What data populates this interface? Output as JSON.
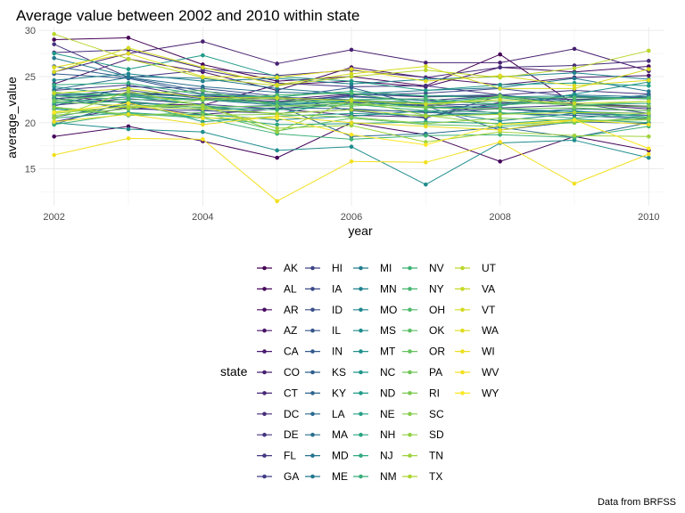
{
  "chart_data": {
    "type": "line",
    "title": "Average value between 2002 and 2010 within state",
    "xlabel": "year",
    "ylabel": "average_value",
    "caption": "Data from BRFSS",
    "legend_title": "state",
    "legend_position": "bottom",
    "grid": true,
    "xlim": [
      2001.8,
      2010.2
    ],
    "ylim": [
      11.0,
      30.4
    ],
    "x_ticks": [
      2002,
      2004,
      2006,
      2008,
      2010
    ],
    "y_ticks": [
      15,
      20,
      25,
      30
    ],
    "x": [
      2002,
      2003,
      2004,
      2005,
      2006,
      2007,
      2008,
      2009,
      2010
    ],
    "series": [
      {
        "name": "AK",
        "color": "#440154",
        "values": [
          29.0,
          29.2,
          26.3,
          24.5,
          25.0,
          24.0,
          27.4,
          22.0,
          21.8
        ]
      },
      {
        "name": "AL",
        "color": "#45065b",
        "values": [
          18.5,
          19.6,
          18.0,
          16.2,
          20.0,
          18.7,
          15.8,
          18.5,
          17.0
        ]
      },
      {
        "name": "AR",
        "color": "#470c61",
        "values": [
          23.0,
          22.1,
          21.9,
          24.1,
          24.5,
          23.9,
          26.0,
          25.5,
          26.1
        ]
      },
      {
        "name": "AZ",
        "color": "#481467",
        "values": [
          24.2,
          26.9,
          25.5,
          23.5,
          26.0,
          24.9,
          24.1,
          24.9,
          25.1
        ]
      },
      {
        "name": "CA",
        "color": "#48196d",
        "values": [
          22.6,
          23.2,
          22.9,
          22.5,
          23.1,
          22.8,
          22.9,
          22.5,
          22.7
        ]
      },
      {
        "name": "CO",
        "color": "#482071",
        "values": [
          25.5,
          27.5,
          28.8,
          26.4,
          27.9,
          26.5,
          26.5,
          28.0,
          25.6
        ]
      },
      {
        "name": "CT",
        "color": "#472675",
        "values": [
          20.1,
          21.7,
          20.9,
          21.5,
          20.8,
          20.6,
          22.2,
          22.0,
          21.5
        ]
      },
      {
        "name": "DC",
        "color": "#462d7b",
        "values": [
          27.6,
          27.9,
          25.9,
          25.1,
          25.7,
          24.9,
          26.0,
          26.2,
          26.7
        ]
      },
      {
        "name": "DE",
        "color": "#45337f",
        "values": [
          28.5,
          24.9,
          25.7,
          24.3,
          23.9,
          24.0,
          23.0,
          23.5,
          23.1
        ]
      },
      {
        "name": "FL",
        "color": "#433882",
        "values": [
          23.5,
          24.1,
          22.7,
          22.3,
          22.9,
          22.4,
          22.9,
          22.5,
          22.8
        ]
      },
      {
        "name": "GA",
        "color": "#413e85",
        "values": [
          21.9,
          22.6,
          22.0,
          21.5,
          22.2,
          21.9,
          21.6,
          21.9,
          21.7
        ]
      },
      {
        "name": "HI",
        "color": "#3e4487",
        "values": [
          22.9,
          23.5,
          22.6,
          22.2,
          23.0,
          23.2,
          23.7,
          22.8,
          22.6
        ]
      },
      {
        "name": "IA",
        "color": "#3b4988",
        "values": [
          22.7,
          21.5,
          21.3,
          21.0,
          21.4,
          21.2,
          21.5,
          21.0,
          20.8
        ]
      },
      {
        "name": "ID",
        "color": "#384f8a",
        "values": [
          21.8,
          23.9,
          23.7,
          22.9,
          21.3,
          20.5,
          22.9,
          22.1,
          21.0
        ]
      },
      {
        "name": "IL",
        "color": "#35548b",
        "values": [
          22.6,
          23.1,
          22.9,
          22.7,
          22.5,
          22.0,
          21.9,
          22.8,
          22.6
        ]
      },
      {
        "name": "IN",
        "color": "#325a8c",
        "values": [
          25.3,
          24.8,
          23.1,
          22.8,
          22.4,
          21.8,
          21.0,
          20.8,
          20.4
        ]
      },
      {
        "name": "KS",
        "color": "#2f5f8d",
        "values": [
          26.1,
          24.9,
          23.4,
          22.7,
          23.8,
          21.8,
          19.2,
          20.1,
          19.9
        ]
      },
      {
        "name": "KY",
        "color": "#2c648e",
        "values": [
          20.6,
          22.0,
          21.4,
          21.6,
          21.5,
          21.1,
          20.9,
          21.5,
          21.3
        ]
      },
      {
        "name": "LA",
        "color": "#2a698e",
        "values": [
          19.8,
          22.3,
          21.6,
          21.9,
          18.5,
          18.8,
          19.5,
          18.4,
          20.0
        ]
      },
      {
        "name": "MA",
        "color": "#276e8e",
        "values": [
          23.6,
          24.9,
          23.9,
          23.3,
          23.1,
          22.9,
          23.0,
          22.3,
          23.0
        ]
      },
      {
        "name": "MD",
        "color": "#25738e",
        "values": [
          23.1,
          23.0,
          22.5,
          22.1,
          22.8,
          22.4,
          22.0,
          23.0,
          22.8
        ]
      },
      {
        "name": "ME",
        "color": "#23788e",
        "values": [
          27.0,
          25.0,
          24.8,
          23.7,
          23.1,
          23.5,
          23.8,
          24.8,
          23.4
        ]
      },
      {
        "name": "MI",
        "color": "#217d8e",
        "values": [
          22.2,
          22.8,
          22.5,
          21.9,
          22.3,
          21.7,
          21.5,
          21.2,
          21.0
        ]
      },
      {
        "name": "MN",
        "color": "#1f838e",
        "values": [
          24.6,
          25.3,
          24.5,
          24.8,
          24.2,
          24.7,
          25.0,
          25.4,
          24.7
        ]
      },
      {
        "name": "MO",
        "color": "#1e878d",
        "values": [
          21.5,
          20.8,
          20.9,
          20.3,
          20.7,
          21.3,
          20.2,
          21.0,
          20.5
        ]
      },
      {
        "name": "MS",
        "color": "#1e8c8c",
        "values": [
          20.0,
          19.3,
          19.0,
          17.0,
          17.4,
          13.3,
          17.8,
          18.1,
          16.2
        ]
      },
      {
        "name": "MT",
        "color": "#1e918b",
        "values": [
          23.9,
          22.9,
          21.9,
          20.9,
          22.5,
          21.6,
          21.8,
          23.1,
          24.4
        ]
      },
      {
        "name": "NC",
        "color": "#1f968a",
        "values": [
          22.9,
          23.1,
          22.8,
          22.0,
          22.4,
          22.2,
          22.8,
          22.9,
          22.6
        ]
      },
      {
        "name": "ND",
        "color": "#219b88",
        "values": [
          27.5,
          25.8,
          27.3,
          25.0,
          24.5,
          23.5,
          24.1,
          24.3,
          24.0
        ]
      },
      {
        "name": "NE",
        "color": "#25a085",
        "values": [
          22.1,
          22.3,
          20.1,
          20.7,
          21.0,
          20.8,
          21.0,
          21.3,
          20.6
        ]
      },
      {
        "name": "NH",
        "color": "#2aa482",
        "values": [
          20.5,
          21.1,
          20.6,
          19.8,
          19.9,
          20.1,
          19.9,
          20.4,
          20.0
        ]
      },
      {
        "name": "NJ",
        "color": "#30a97f",
        "values": [
          24.1,
          24.3,
          23.0,
          22.8,
          23.4,
          22.9,
          22.7,
          21.9,
          22.1
        ]
      },
      {
        "name": "NM",
        "color": "#37ad7a",
        "values": [
          22.5,
          22.2,
          21.6,
          21.4,
          22.0,
          21.3,
          21.1,
          20.5,
          21.0
        ]
      },
      {
        "name": "NV",
        "color": "#3eb276",
        "values": [
          19.8,
          21.0,
          20.5,
          18.8,
          18.2,
          18.6,
          18.7,
          18.4,
          19.6
        ]
      },
      {
        "name": "NY",
        "color": "#47b671",
        "values": [
          22.9,
          22.5,
          22.5,
          22.2,
          22.5,
          22.6,
          21.9,
          22.4,
          22.7
        ]
      },
      {
        "name": "OH",
        "color": "#50ba6b",
        "values": [
          23.3,
          22.9,
          22.4,
          23.0,
          23.2,
          22.0,
          22.7,
          22.7,
          22.6
        ]
      },
      {
        "name": "OK",
        "color": "#5abe65",
        "values": [
          21.6,
          20.8,
          21.1,
          19.1,
          20.5,
          19.8,
          19.6,
          20.0,
          20.6
        ]
      },
      {
        "name": "OR",
        "color": "#64c25f",
        "values": [
          22.4,
          23.1,
          23.5,
          21.8,
          21.8,
          22.2,
          22.3,
          21.9,
          22.3
        ]
      },
      {
        "name": "PA",
        "color": "#6fc658",
        "values": [
          22.3,
          21.8,
          21.7,
          21.8,
          22.1,
          21.6,
          21.5,
          21.6,
          21.3
        ]
      },
      {
        "name": "RI",
        "color": "#7ac951",
        "values": [
          20.8,
          21.5,
          22.5,
          22.6,
          22.0,
          21.7,
          22.9,
          21.8,
          21.8
        ]
      },
      {
        "name": "SC",
        "color": "#86cc4a",
        "values": [
          21.7,
          20.9,
          20.8,
          20.9,
          20.6,
          19.9,
          20.5,
          20.2,
          20.3
        ]
      },
      {
        "name": "SD",
        "color": "#92d042",
        "values": [
          21.0,
          21.8,
          21.9,
          19.0,
          22.5,
          20.8,
          19.8,
          20.1,
          20.4
        ]
      },
      {
        "name": "TN",
        "color": "#9fd33b",
        "values": [
          20.5,
          23.4,
          21.8,
          19.4,
          19.7,
          17.9,
          19.0,
          18.6,
          18.5
        ]
      },
      {
        "name": "TX",
        "color": "#acd533",
        "values": [
          21.2,
          21.7,
          21.5,
          21.0,
          21.4,
          20.7,
          20.9,
          21.1,
          21.0
        ]
      },
      {
        "name": "UT",
        "color": "#b9d72c",
        "values": [
          29.6,
          26.9,
          24.9,
          24.0,
          25.0,
          25.7,
          24.9,
          25.9,
          27.8
        ]
      },
      {
        "name": "VA",
        "color": "#c6d925",
        "values": [
          23.2,
          23.7,
          22.7,
          22.7,
          22.4,
          22.0,
          22.5,
          22.1,
          22.3
        ]
      },
      {
        "name": "VT",
        "color": "#d3db21",
        "values": [
          25.5,
          28.1,
          26.0,
          24.1,
          25.3,
          26.1,
          23.7,
          23.7,
          25.8
        ]
      },
      {
        "name": "WA",
        "color": "#e0dc1f",
        "values": [
          26.0,
          27.5,
          25.0,
          24.9,
          25.8,
          24.5,
          25.1,
          24.0,
          24.6
        ]
      },
      {
        "name": "WI",
        "color": "#ecde20",
        "values": [
          20.1,
          20.9,
          19.8,
          20.7,
          20.0,
          19.6,
          19.2,
          20.3,
          19.8
        ]
      },
      {
        "name": "WV",
        "color": "#f2e021",
        "values": [
          16.5,
          18.3,
          18.2,
          11.5,
          15.8,
          15.7,
          17.9,
          13.4,
          16.6
        ]
      },
      {
        "name": "WY",
        "color": "#fde725",
        "values": [
          21.1,
          22.1,
          20.5,
          20.5,
          18.7,
          17.6,
          19.8,
          20.3,
          17.2
        ]
      }
    ]
  }
}
